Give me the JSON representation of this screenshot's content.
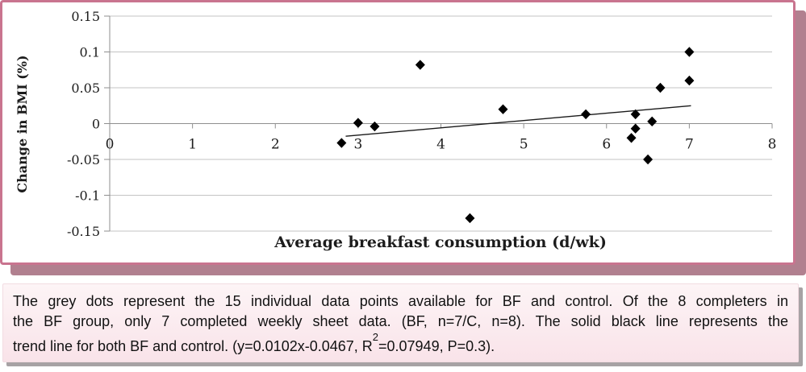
{
  "chart_data": {
    "type": "scatter",
    "title": "",
    "xlabel": "Average breakfast consumption (d/wk)",
    "ylabel": "Change in BMI (%)",
    "xlim": [
      0,
      8
    ],
    "ylim": [
      -0.15,
      0.15
    ],
    "x_ticks": [
      0,
      1,
      2,
      3,
      4,
      5,
      6,
      7,
      8
    ],
    "y_ticks": [
      0.15,
      0.1,
      0.05,
      0,
      -0.05,
      -0.1,
      -0.15
    ],
    "y_tick_labels": [
      "0.15",
      "0.1",
      "0.05",
      "0",
      "-0.05",
      "-0.1",
      "-0.15"
    ],
    "grid": "horizontal",
    "legend": "none",
    "marker": "diamond",
    "points": [
      [
        2.8,
        -0.027
      ],
      [
        3.0,
        0.001
      ],
      [
        3.2,
        -0.004
      ],
      [
        3.75,
        0.082
      ],
      [
        4.35,
        -0.132
      ],
      [
        4.75,
        0.02
      ],
      [
        5.75,
        0.013
      ],
      [
        6.3,
        -0.02
      ],
      [
        6.35,
        0.013
      ],
      [
        6.35,
        -0.007
      ],
      [
        6.5,
        -0.05
      ],
      [
        6.55,
        0.003
      ],
      [
        6.65,
        0.05
      ],
      [
        7.0,
        0.1
      ],
      [
        7.0,
        0.06
      ]
    ],
    "trendline": {
      "slope": 0.0102,
      "intercept": -0.0467,
      "x_start": 2.85,
      "x_end": 7.02,
      "equation": "y=0.0102x-0.0467",
      "r_squared": "0.07949",
      "p_value": "0.3"
    }
  },
  "caption": {
    "lines": [
      "The grey dots represent the 15 individual data points available for BF and control. Of the 8 completers in",
      "the BF group, only 7 completed weekly sheet data. (BF, n=7/C, n=8). The solid black line represents the"
    ],
    "line3_part1": "trend line for both BF and control. (y=0.0102x-0.0467, R",
    "line3_sup": "2",
    "line3_part2": "=0.07949, P=0.3)."
  },
  "colors": {
    "frame_border": "#c9748f",
    "frame_shadow": "#b1808f",
    "caption_bg_top": "#fdf4f6",
    "caption_bg_bottom": "#f9e3e9",
    "caption_edge": "#f2dce2",
    "caption_shadow": "#a7a2a4",
    "grid_line": "#c3c3c3",
    "axis_line": "#8f8f8f",
    "marker_color": "#000000",
    "trend_color": "#1a1a1a"
  }
}
